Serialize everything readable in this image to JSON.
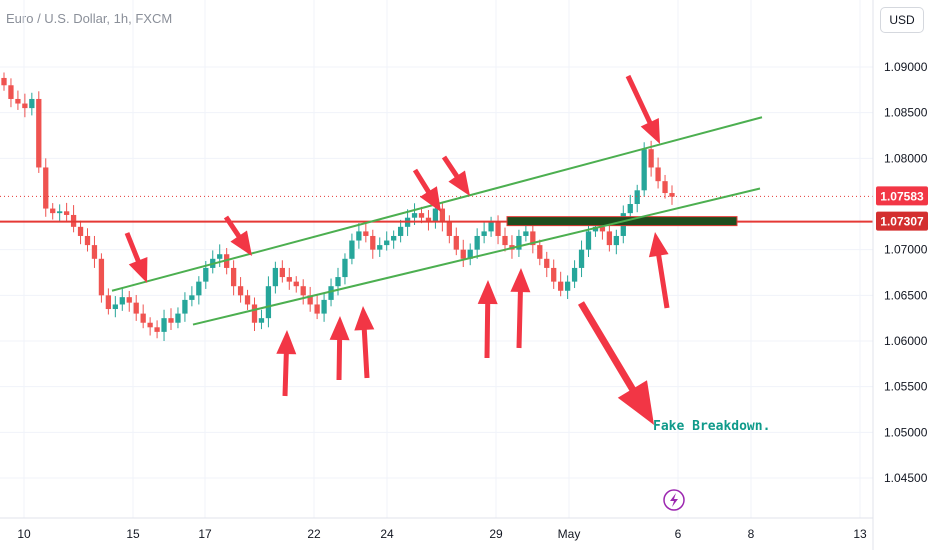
{
  "header": {
    "title": "Euro / U.S. Dollar, 1h, FXCM",
    "currency_button": "USD"
  },
  "badges": {
    "last_price": "1.07583",
    "level_price": "1.07307"
  },
  "annotation": {
    "text": "Fake Breakdown."
  },
  "colors": {
    "candle_up": "#26a69a",
    "candle_down": "#ef5350",
    "channel": "#4caf50",
    "level_line": "#e53935",
    "arrow": "#f23645",
    "zone": "#1e4d1e",
    "annotation": "#0f9a8a",
    "icon": "#9c27b0"
  },
  "chart_data": {
    "type": "candlestick",
    "title": "Euro / U.S. Dollar, 1h, FXCM",
    "xlabel": "",
    "ylabel": "",
    "x_ticks": [
      "10",
      "15",
      "17",
      "22",
      "24",
      "29",
      "May",
      "6",
      "8",
      "13"
    ],
    "y_ticks": [
      "1.09000",
      "1.08500",
      "1.08000",
      "1.07583",
      "1.07307",
      "1.07000",
      "1.06500",
      "1.06000",
      "1.05500",
      "1.05000",
      "1.04500"
    ],
    "ylim": [
      1.0425,
      1.0925
    ],
    "grid": true,
    "series": [
      {
        "values": [
          1.088,
          1.0865,
          1.086,
          1.0855,
          1.0865,
          1.079,
          1.0745,
          1.074,
          1.0742,
          1.0738,
          1.0725,
          1.0715,
          1.0705,
          1.069,
          1.065,
          1.0635,
          1.064,
          1.0648,
          1.0642,
          1.063,
          1.062,
          1.0615,
          1.061,
          1.0625,
          1.062,
          1.063,
          1.0645,
          1.065,
          1.0665,
          1.068,
          1.069,
          1.0695,
          1.068,
          1.066,
          1.065,
          1.064,
          1.062,
          1.0625,
          1.066,
          1.068,
          1.067,
          1.0665,
          1.066,
          1.065,
          1.064,
          1.063,
          1.0645,
          1.066,
          1.067,
          1.069,
          1.071,
          1.072,
          1.0715,
          1.07,
          1.0705,
          1.071,
          1.0715,
          1.0725,
          1.0735,
          1.074,
          1.0735,
          1.073,
          1.0745,
          1.073,
          1.0715,
          1.07,
          1.069,
          1.07,
          1.0715,
          1.072,
          1.073,
          1.0715,
          1.0705,
          1.07,
          1.0715,
          1.072,
          1.0705,
          1.069,
          1.068,
          1.0665,
          1.0655,
          1.0665,
          1.068,
          1.07,
          1.072,
          1.0725,
          1.072,
          1.0705,
          1.0715,
          1.074,
          1.075,
          1.0765,
          1.081,
          1.079,
          1.0775,
          1.0762,
          1.0758
        ],
        "name": ""
      }
    ],
    "channel_upper": [
      {
        "x": "15",
        "y": 1.0655
      },
      {
        "x": "8",
        "y": 1.0845
      }
    ],
    "channel_lower": [
      {
        "x": "17",
        "y": 1.0618
      },
      {
        "x": "8",
        "y": 1.0767
      }
    ],
    "horizontal_level": 1.07307,
    "last_price": 1.07583
  }
}
